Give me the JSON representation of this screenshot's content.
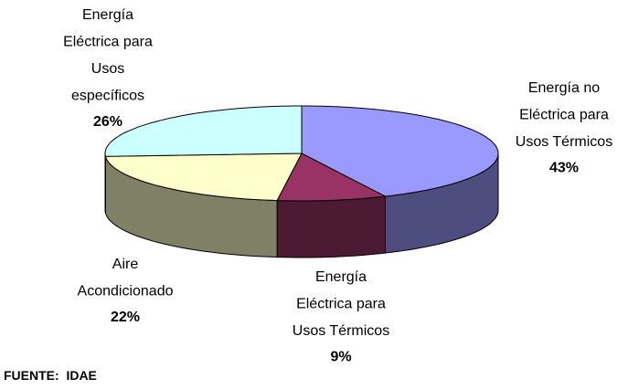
{
  "chart_data": {
    "type": "pie3d",
    "categories": [
      "Energía no Eléctrica para Usos Térmicos",
      "Energía Eléctrica para Usos Térmicos",
      "Aire Acondicionado",
      "Energía Eléctrica para Usos específicos"
    ],
    "values": [
      43,
      9,
      22,
      26
    ],
    "value_labels": [
      "43%",
      "9%",
      "22%",
      "26%"
    ],
    "colors": [
      "#9999ff",
      "#993366",
      "#ffffcc",
      "#ccffff"
    ],
    "source": "FUENTE:  IDAE"
  }
}
